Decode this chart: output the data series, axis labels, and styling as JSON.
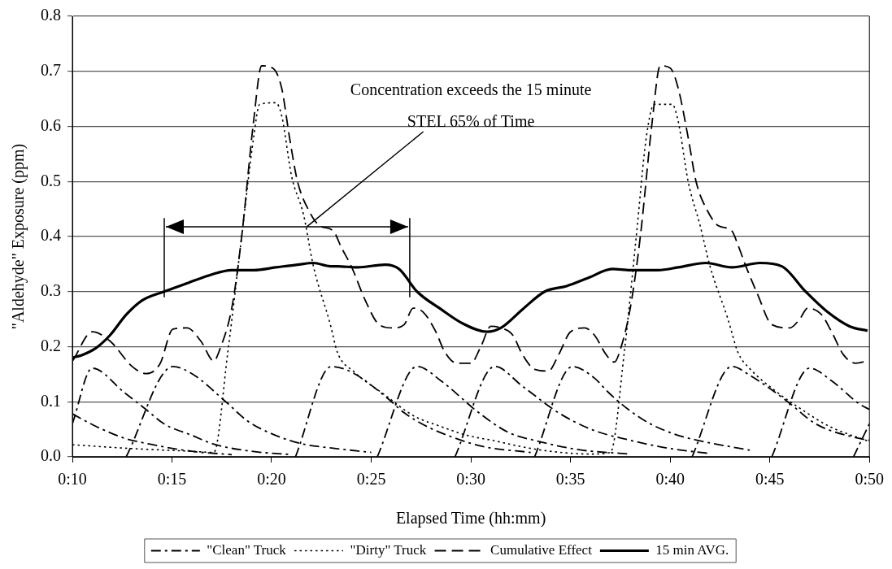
{
  "chart_data": {
    "type": "line",
    "xlabel": "Elapsed Time (hh:mm)",
    "ylabel": "\"Aldehyde\" Exposure (ppm)",
    "xlim": [
      0.1667,
      0.8333
    ],
    "xticks": [
      {
        "value": 0.1667,
        "label": "0:10"
      },
      {
        "value": 0.25,
        "label": "0:15"
      },
      {
        "value": 0.3333,
        "label": "0:20"
      },
      {
        "value": 0.4167,
        "label": "0:25"
      },
      {
        "value": 0.5,
        "label": "0:30"
      },
      {
        "value": 0.5833,
        "label": "0:35"
      },
      {
        "value": 0.6667,
        "label": "0:40"
      },
      {
        "value": 0.75,
        "label": "0:45"
      },
      {
        "value": 0.8333,
        "label": "0:50"
      }
    ],
    "ylim": [
      0,
      0.8
    ],
    "yticks": [
      {
        "value": 0,
        "label": "0.0"
      },
      0.1,
      0.2,
      0.3,
      0.4,
      0.5,
      0.6,
      0.7,
      0.8
    ],
    "grid": "y",
    "legend": "bottom",
    "marker": "none",
    "annotations": [
      "Concentration exceeds the 15 minute STEL 65% of Time"
    ],
    "series": [
      {
        "name": "\"Clean\" Truck",
        "color": "#000000",
        "line_style": "dashdot",
        "x": [
          0.1667,
          0.1833,
          0.21,
          0.2283,
          0.2433,
          0.2667,
          0.285,
          0.3167,
          0.35
        ],
        "values": [
          0.06,
          0.161,
          0.117,
          0.086,
          0.06,
          0.039,
          0.023,
          0.01,
          0.004
        ]
      },
      {
        "name": "\"Dirty\" Truck",
        "color": "#000000",
        "line_style": "dotted",
        "x": [
          0.1667,
          0.2167,
          0.2667,
          0.285,
          0.2967,
          0.3083,
          0.3183,
          0.3233,
          0.3367,
          0.3417,
          0.35,
          0.36,
          0.3683,
          0.3825,
          0.3883,
          0.4025,
          0.4283,
          0.4517,
          0.475,
          0.4967,
          0.52,
          0.5433,
          0.5667,
          0.6,
          0.6167,
          0.6283,
          0.6383,
          0.6467,
          0.6533,
          0.6683,
          0.6733,
          0.6817,
          0.6917,
          0.7,
          0.715,
          0.7233,
          0.7333,
          0.7533,
          0.7767,
          0.8,
          0.8317
        ],
        "values": [
          0.022,
          0.015,
          0.01,
          0.008,
          0.19,
          0.4,
          0.58,
          0.64,
          0.643,
          0.62,
          0.51,
          0.44,
          0.346,
          0.24,
          0.19,
          0.154,
          0.112,
          0.075,
          0.055,
          0.039,
          0.029,
          0.018,
          0.01,
          0.005,
          0.008,
          0.19,
          0.4,
          0.58,
          0.64,
          0.64,
          0.61,
          0.5,
          0.42,
          0.346,
          0.25,
          0.19,
          0.16,
          0.122,
          0.086,
          0.055,
          0.029
        ]
      },
      {
        "name": "Cumulative Effect",
        "color": "#000000",
        "line_style": "dashed",
        "x": [
          0.1672,
          0.1833,
          0.1983,
          0.2167,
          0.2283,
          0.24,
          0.2508,
          0.2625,
          0.2742,
          0.285,
          0.29,
          0.3,
          0.3083,
          0.3183,
          0.325,
          0.3342,
          0.3417,
          0.3483,
          0.355,
          0.365,
          0.3733,
          0.385,
          0.3917,
          0.4,
          0.4117,
          0.4233,
          0.435,
          0.4442,
          0.4517,
          0.46,
          0.47,
          0.4783,
          0.4883,
          0.5,
          0.5083,
          0.5167,
          0.525,
          0.535,
          0.5433,
          0.5533,
          0.565,
          0.5733,
          0.5833,
          0.595,
          0.6033,
          0.6133,
          0.62,
          0.625,
          0.6333,
          0.6417,
          0.6517,
          0.6583,
          0.6667,
          0.6733,
          0.6817,
          0.6883,
          0.6983,
          0.7067,
          0.7183,
          0.7233,
          0.73,
          0.74,
          0.7517,
          0.7667,
          0.775,
          0.7817,
          0.7933,
          0.8017,
          0.8117,
          0.8217,
          0.8333
        ],
        "values": [
          0.175,
          0.227,
          0.21,
          0.164,
          0.151,
          0.169,
          0.232,
          0.234,
          0.21,
          0.174,
          0.195,
          0.27,
          0.4,
          0.61,
          0.71,
          0.706,
          0.67,
          0.58,
          0.5,
          0.445,
          0.42,
          0.41,
          0.38,
          0.346,
          0.284,
          0.24,
          0.234,
          0.24,
          0.27,
          0.263,
          0.23,
          0.19,
          0.17,
          0.17,
          0.2,
          0.237,
          0.234,
          0.221,
          0.185,
          0.159,
          0.156,
          0.185,
          0.227,
          0.234,
          0.221,
          0.185,
          0.172,
          0.195,
          0.27,
          0.4,
          0.61,
          0.71,
          0.706,
          0.67,
          0.58,
          0.5,
          0.445,
          0.42,
          0.41,
          0.385,
          0.346,
          0.294,
          0.24,
          0.234,
          0.25,
          0.27,
          0.258,
          0.227,
          0.185,
          0.17,
          0.175
        ]
      },
      {
        "name": "15 min AVG.",
        "color": "#000000",
        "line_style": "solid",
        "x": [
          0.1667,
          0.175,
          0.1867,
          0.1983,
          0.2117,
          0.225,
          0.2433,
          0.2625,
          0.2817,
          0.3,
          0.3183,
          0.3367,
          0.355,
          0.3683,
          0.3825,
          0.3883,
          0.405,
          0.4283,
          0.44,
          0.455,
          0.475,
          0.4933,
          0.5133,
          0.525,
          0.5433,
          0.5617,
          0.58,
          0.5983,
          0.6183,
          0.6333,
          0.6567,
          0.6733,
          0.6967,
          0.7183,
          0.7417,
          0.76,
          0.78,
          0.7983,
          0.8167,
          0.8317
        ],
        "values": [
          0.18,
          0.185,
          0.198,
          0.221,
          0.258,
          0.284,
          0.3,
          0.315,
          0.33,
          0.339,
          0.339,
          0.344,
          0.349,
          0.352,
          0.346,
          0.346,
          0.344,
          0.349,
          0.341,
          0.3,
          0.268,
          0.242,
          0.227,
          0.234,
          0.268,
          0.3,
          0.31,
          0.325,
          0.341,
          0.339,
          0.339,
          0.344,
          0.352,
          0.344,
          0.352,
          0.346,
          0.3,
          0.263,
          0.237,
          0.229
        ]
      },
      {
        "color": "#000000",
        "line_style": "dashdot",
        "x": [
          0.1667,
          0.1867,
          0.21,
          0.2317,
          0.2667,
          0.3
        ],
        "values": [
          0.078,
          0.055,
          0.034,
          0.023,
          0.01,
          0.004
        ]
      },
      {
        "color": "#000000",
        "line_style": "dashdot",
        "x": [
          0.2117,
          0.2508,
          0.2667,
          0.295,
          0.3133,
          0.3367,
          0.36,
          0.3833,
          0.4167
        ],
        "values": [
          0,
          0.164,
          0.151,
          0.1,
          0.065,
          0.039,
          0.023,
          0.016,
          0.008
        ]
      },
      {
        "color": "#000000",
        "line_style": "dashdot",
        "x": [
          0.3533,
          0.3833,
          0.4,
          0.4283,
          0.4442,
          0.4633,
          0.4867,
          0.5117,
          0.55
        ],
        "values": [
          0,
          0.164,
          0.154,
          0.11,
          0.08,
          0.055,
          0.034,
          0.018,
          0.008
        ]
      },
      {
        "color": "#000000",
        "line_style": "dashdot",
        "x": [
          0.4217,
          0.455,
          0.475,
          0.5067,
          0.5317,
          0.555,
          0.59,
          0.6333
        ],
        "values": [
          0,
          0.164,
          0.138,
          0.08,
          0.044,
          0.029,
          0.013,
          0.005
        ]
      },
      {
        "color": "#000000",
        "line_style": "dashdot",
        "x": [
          0.4867,
          0.52,
          0.5433,
          0.5733,
          0.6017,
          0.6333,
          0.6667,
          0.7
        ],
        "values": [
          0,
          0.164,
          0.128,
          0.08,
          0.049,
          0.03,
          0.015,
          0.006
        ]
      },
      {
        "color": "#000000",
        "line_style": "dashdot",
        "x": [
          0.5533,
          0.585,
          0.6033,
          0.615,
          0.6317,
          0.65,
          0.6733,
          0.6917,
          0.7333
        ],
        "values": [
          0,
          0.164,
          0.143,
          0.117,
          0.086,
          0.06,
          0.039,
          0.029,
          0.012
        ]
      },
      {
        "color": "#000000",
        "line_style": "dashdot",
        "x": [
          0.685,
          0.7183,
          0.7333,
          0.765,
          0.7883,
          0.8233,
          0.8333
        ],
        "values": [
          0,
          0.164,
          0.148,
          0.1,
          0.06,
          0.034,
          0.03
        ]
      },
      {
        "color": "#000000",
        "line_style": "dashdot",
        "x": [
          0.7517,
          0.7833,
          0.8017,
          0.825,
          0.8333
        ],
        "values": [
          0,
          0.161,
          0.138,
          0.096,
          0.086
        ]
      },
      {
        "color": "#000000",
        "line_style": "dashdot",
        "x": [
          0.82,
          0.8333
        ],
        "values": [
          0,
          0.06
        ]
      }
    ]
  }
}
